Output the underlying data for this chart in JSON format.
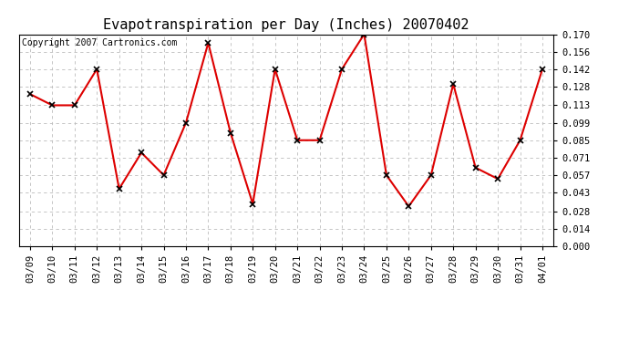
{
  "title": "Evapotranspiration per Day (Inches) 20070402",
  "copyright": "Copyright 2007 Cartronics.com",
  "dates": [
    "03/09",
    "03/10",
    "03/11",
    "03/12",
    "03/13",
    "03/14",
    "03/15",
    "03/16",
    "03/17",
    "03/18",
    "03/19",
    "03/20",
    "03/21",
    "03/22",
    "03/23",
    "03/24",
    "03/25",
    "03/26",
    "03/27",
    "03/28",
    "03/29",
    "03/30",
    "03/31",
    "04/01"
  ],
  "values": [
    0.122,
    0.113,
    0.113,
    0.142,
    0.046,
    0.075,
    0.057,
    0.099,
    0.163,
    0.091,
    0.034,
    0.142,
    0.085,
    0.085,
    0.142,
    0.17,
    0.057,
    0.032,
    0.057,
    0.13,
    0.063,
    0.054,
    0.085,
    0.142
  ],
  "line_color": "#dd0000",
  "marker": "x",
  "marker_size": 4,
  "marker_color": "#000000",
  "line_width": 1.5,
  "ylim": [
    0.0,
    0.17
  ],
  "yticks": [
    0.0,
    0.014,
    0.028,
    0.043,
    0.057,
    0.071,
    0.085,
    0.099,
    0.113,
    0.128,
    0.142,
    0.156,
    0.17
  ],
  "background_color": "#ffffff",
  "grid_color": "#bbbbbb",
  "title_fontsize": 11,
  "tick_fontsize": 7.5,
  "copyright_fontsize": 7
}
